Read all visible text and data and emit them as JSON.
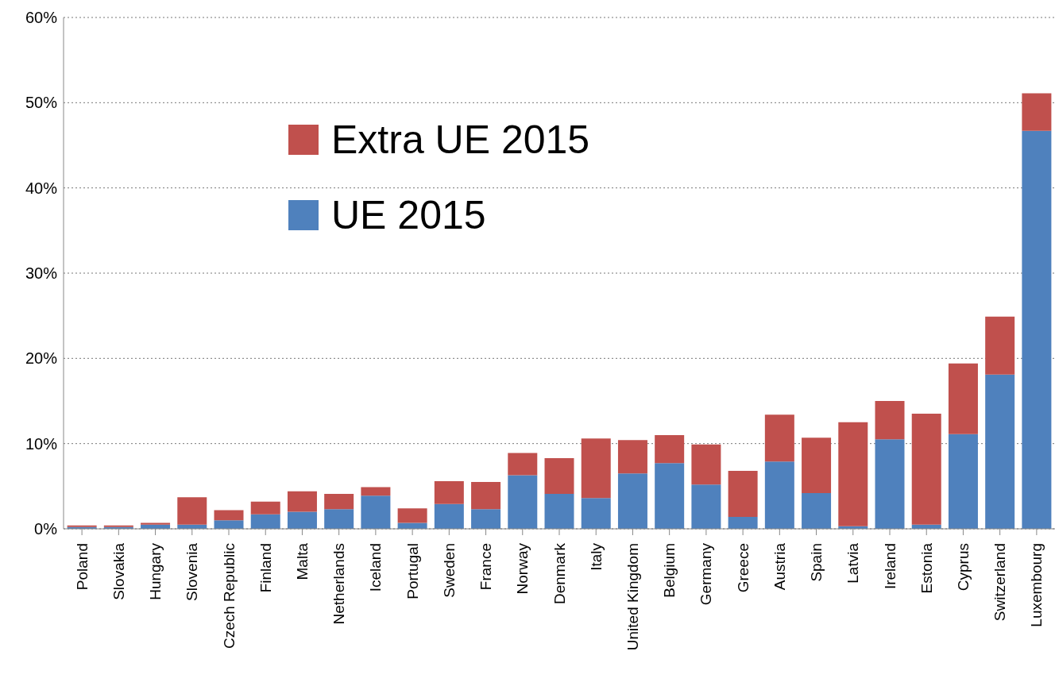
{
  "chart_data": {
    "type": "bar",
    "stacked": true,
    "categories": [
      "Poland",
      "Slovakia",
      "Hungary",
      "Slovenia",
      "Czech Republic",
      "Finland",
      "Malta",
      "Netherlands",
      "Iceland",
      "Portugal",
      "Sweden",
      "France",
      "Norway",
      "Denmark",
      "Italy",
      "United Kingdom",
      "Belgium",
      "Germany",
      "Greece",
      "Austria",
      "Spain",
      "Latvia",
      "Ireland",
      "Estonia",
      "Cyprus",
      "Switzerland",
      "Luxembourg"
    ],
    "series": [
      {
        "name": "UE 2015",
        "color": "#4f81bd",
        "values": [
          0.2,
          0.2,
          0.5,
          0.5,
          1.0,
          1.7,
          2.0,
          2.3,
          3.9,
          0.7,
          2.9,
          2.3,
          6.3,
          4.1,
          3.6,
          6.5,
          7.7,
          5.2,
          1.4,
          7.9,
          4.2,
          0.3,
          10.5,
          0.5,
          11.1,
          18.1,
          46.7
        ]
      },
      {
        "name": "Extra UE 2015",
        "color": "#c0504d",
        "values": [
          0.2,
          0.2,
          0.2,
          3.2,
          1.2,
          1.5,
          2.4,
          1.8,
          1.0,
          1.7,
          2.7,
          3.2,
          2.6,
          4.2,
          7.0,
          3.9,
          3.3,
          4.7,
          5.4,
          5.5,
          6.5,
          12.2,
          4.5,
          13.0,
          8.3,
          6.8,
          4.4
        ]
      }
    ],
    "ylim": [
      0,
      60
    ],
    "yticks": [
      {
        "value": 0,
        "label": "0%"
      },
      {
        "value": 10,
        "label": "10%"
      },
      {
        "value": 20,
        "label": "20%"
      },
      {
        "value": 30,
        "label": "30%"
      },
      {
        "value": 40,
        "label": "40%"
      },
      {
        "value": 50,
        "label": "50%"
      },
      {
        "value": 60,
        "label": "60%"
      }
    ],
    "grid": "y",
    "legend": "top left"
  }
}
